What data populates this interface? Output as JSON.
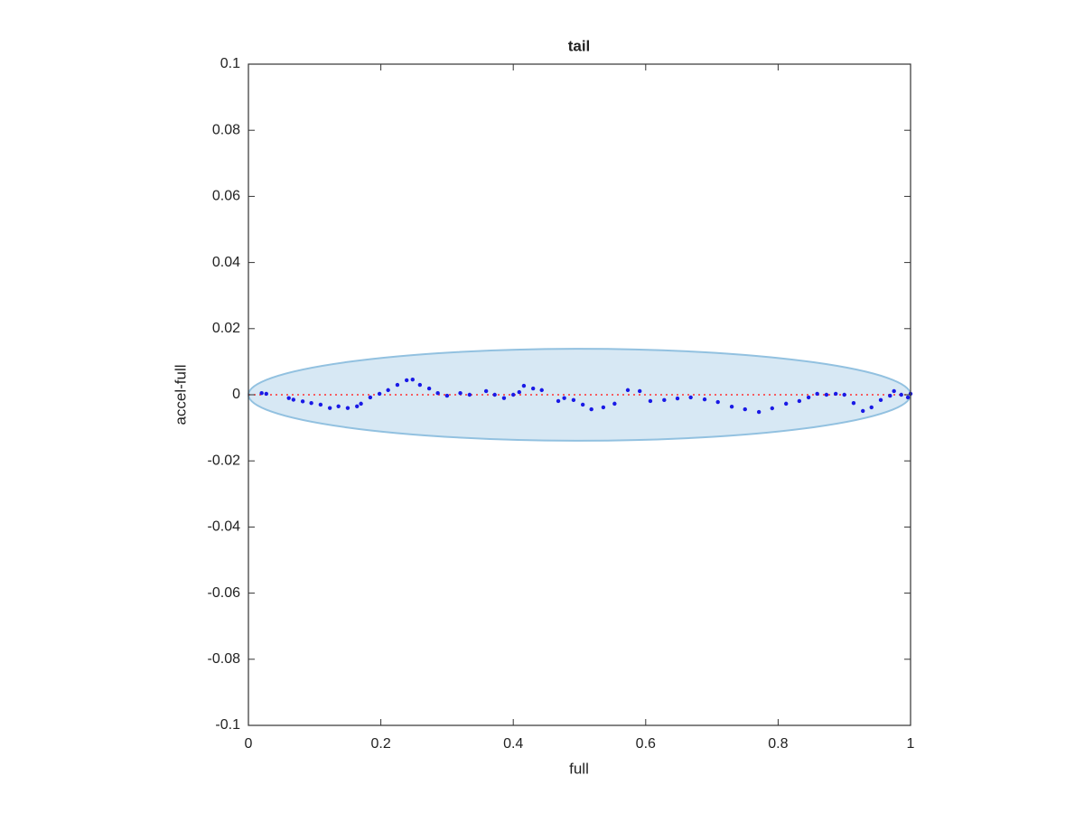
{
  "chart_data": {
    "type": "scatter",
    "title": "tail",
    "x_label": "full",
    "y_label": "accel-full",
    "xlim": [
      0,
      1
    ],
    "ylim": [
      -0.1,
      0.1
    ],
    "xticks": [
      0,
      0.2,
      0.4,
      0.6,
      0.8,
      1
    ],
    "yticks": [
      -0.1,
      -0.08,
      -0.06,
      -0.04,
      -0.02,
      0,
      0.02,
      0.04,
      0.06,
      0.08,
      0.1
    ],
    "grid": false,
    "ellipse": {
      "center": [
        0.5,
        0
      ],
      "radii": [
        0.5,
        0.0139
      ],
      "fill": "#d7e8f4",
      "stroke": "#92c1e0"
    },
    "hline": {
      "value": 0,
      "color": "#ff3030"
    },
    "series": [
      {
        "color": "#1a1ae6",
        "x": [
          0.02,
          0.027,
          0.061,
          0.068,
          0.082,
          0.095,
          0.109,
          0.123,
          0.136,
          0.15,
          0.164,
          0.17,
          0.184,
          0.198,
          0.211,
          0.225,
          0.239,
          0.248,
          0.259,
          0.273,
          0.286,
          0.3,
          0.32,
          0.334,
          0.359,
          0.372,
          0.386,
          0.4,
          0.409,
          0.416,
          0.43,
          0.443,
          0.468,
          0.477,
          0.491,
          0.505,
          0.518,
          0.536,
          0.553,
          0.573,
          0.591,
          0.607,
          0.628,
          0.648,
          0.668,
          0.689,
          0.709,
          0.73,
          0.75,
          0.771,
          0.791,
          0.812,
          0.832,
          0.846,
          0.859,
          0.873,
          0.887,
          0.9,
          0.914,
          0.928,
          0.941,
          0.955,
          0.969,
          0.975,
          0.986,
          0.996,
          1.0
        ],
        "values": [
          0.0005,
          0.0003,
          -0.001,
          -0.0015,
          -0.002,
          -0.0025,
          -0.003,
          -0.004,
          -0.0035,
          -0.004,
          -0.0035,
          -0.0027,
          -0.0008,
          0.0003,
          0.0014,
          0.003,
          0.0044,
          0.0046,
          0.003,
          0.0019,
          0.0005,
          -0.0003,
          0.0005,
          0,
          0.0011,
          0,
          -0.001,
          0,
          0.0008,
          0.0027,
          0.0019,
          0.0014,
          -0.0019,
          -0.001,
          -0.0016,
          -0.003,
          -0.0044,
          -0.0038,
          -0.0027,
          0.0014,
          0.0011,
          -0.0019,
          -0.0016,
          -0.0011,
          -0.0008,
          -0.0014,
          -0.0022,
          -0.0036,
          -0.0044,
          -0.0052,
          -0.0041,
          -0.0027,
          -0.0019,
          -0.0008,
          0.0003,
          0,
          0.0003,
          0,
          -0.0025,
          -0.0049,
          -0.0038,
          -0.0016,
          -0.0003,
          0.0011,
          0,
          -0.0008,
          0.0003
        ]
      }
    ]
  }
}
